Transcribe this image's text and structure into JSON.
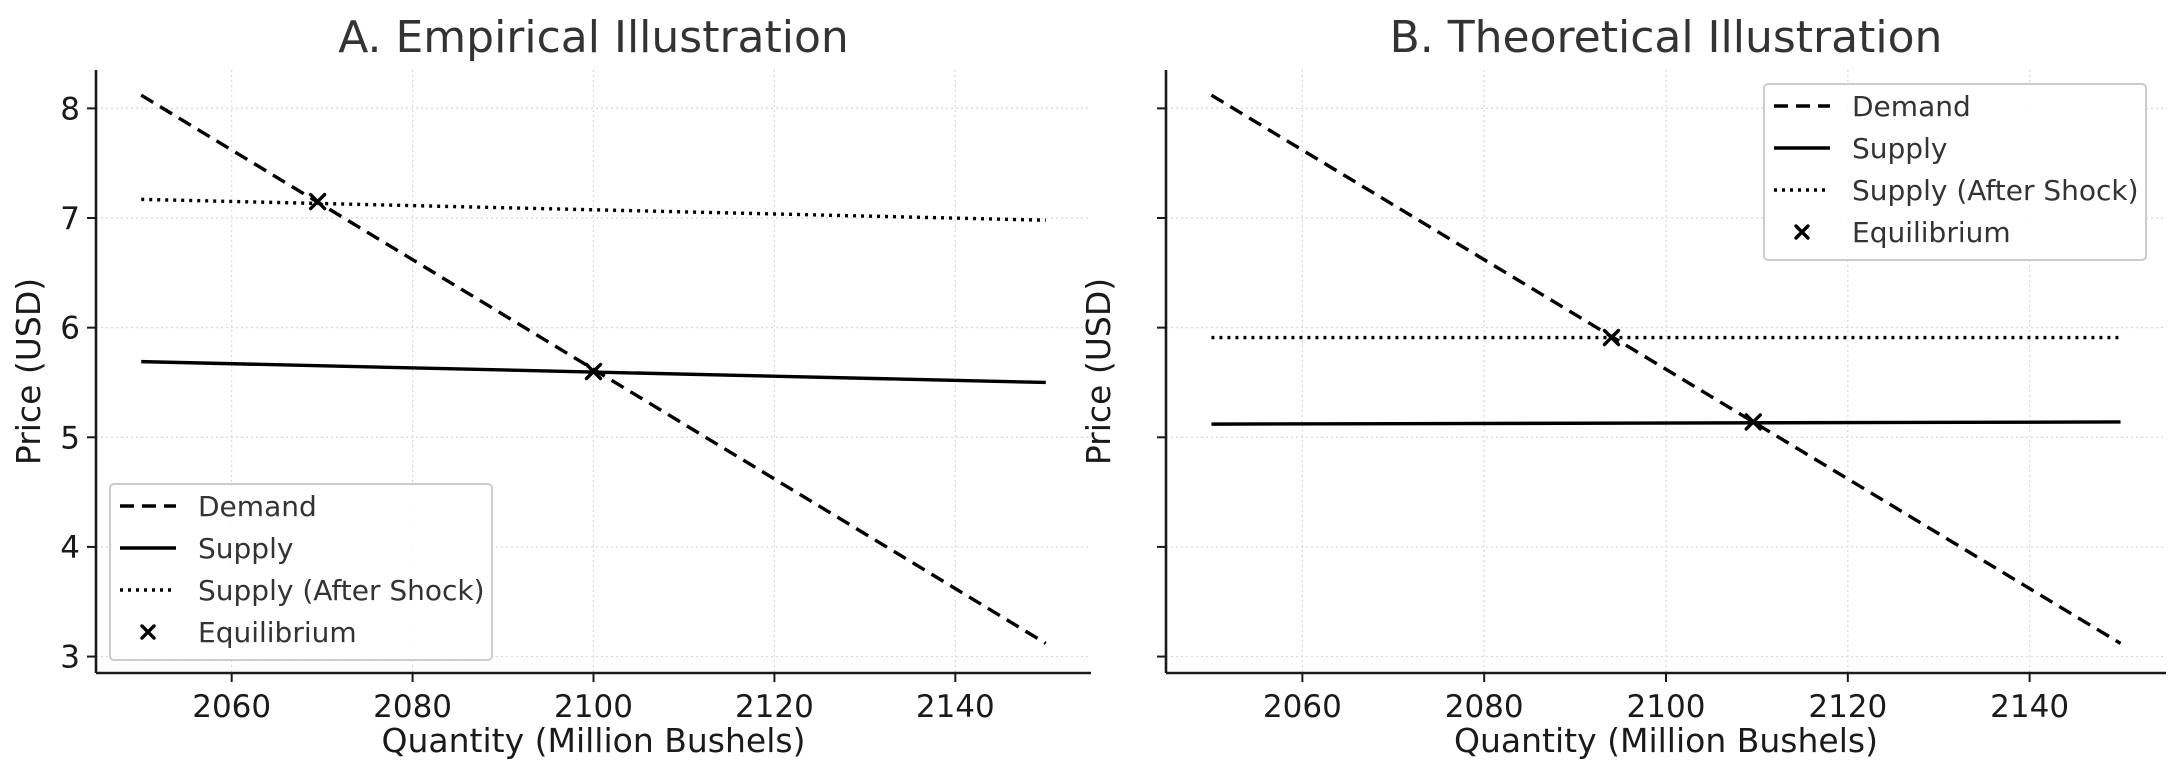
{
  "chart_data": [
    {
      "type": "line",
      "title": "A. Empirical Illustration",
      "xlabel": "Quantity (Million Bushels)",
      "ylabel": "Price (USD)",
      "xlim": [
        2045,
        2155
      ],
      "ylim": [
        2.85,
        8.35
      ],
      "xticks": [
        2060,
        2080,
        2100,
        2120,
        2140
      ],
      "yticks": [
        3,
        4,
        5,
        6,
        7,
        8
      ],
      "show_ytick_labels": true,
      "grid": true,
      "legend_position": "lower-left",
      "series": [
        {
          "name": "Demand",
          "style": "dashed",
          "x": [
            2050,
            2150
          ],
          "y": [
            8.12,
            3.12
          ]
        },
        {
          "name": "Supply",
          "style": "solid",
          "x": [
            2050,
            2150
          ],
          "y": [
            5.69,
            5.5
          ]
        },
        {
          "name": "Supply (After Shock)",
          "style": "dotted",
          "x": [
            2050,
            2150
          ],
          "y": [
            7.17,
            6.98
          ]
        }
      ],
      "equilibrium": {
        "name": "Equilibrium",
        "points": [
          [
            2100,
            5.6
          ],
          [
            2069.5,
            7.15
          ]
        ]
      }
    },
    {
      "type": "line",
      "title": "B. Theoretical Illustration",
      "xlabel": "Quantity (Million Bushels)",
      "ylabel": "Price (USD)",
      "xlim": [
        2045,
        2155
      ],
      "ylim": [
        2.85,
        8.35
      ],
      "xticks": [
        2060,
        2080,
        2100,
        2120,
        2140
      ],
      "yticks": [
        3,
        4,
        5,
        6,
        7,
        8
      ],
      "show_ytick_labels": false,
      "grid": true,
      "legend_position": "upper-right",
      "series": [
        {
          "name": "Demand",
          "style": "dashed",
          "x": [
            2050,
            2150
          ],
          "y": [
            8.12,
            3.12
          ]
        },
        {
          "name": "Supply",
          "style": "solid",
          "x": [
            2050,
            2150
          ],
          "y": [
            5.12,
            5.14
          ]
        },
        {
          "name": "Supply (After Shock)",
          "style": "dotted",
          "x": [
            2050,
            2150
          ],
          "y": [
            5.91,
            5.91
          ]
        }
      ],
      "equilibrium": {
        "name": "Equilibrium",
        "points": [
          [
            2109.6,
            5.14
          ],
          [
            2094,
            5.91
          ]
        ]
      }
    }
  ]
}
